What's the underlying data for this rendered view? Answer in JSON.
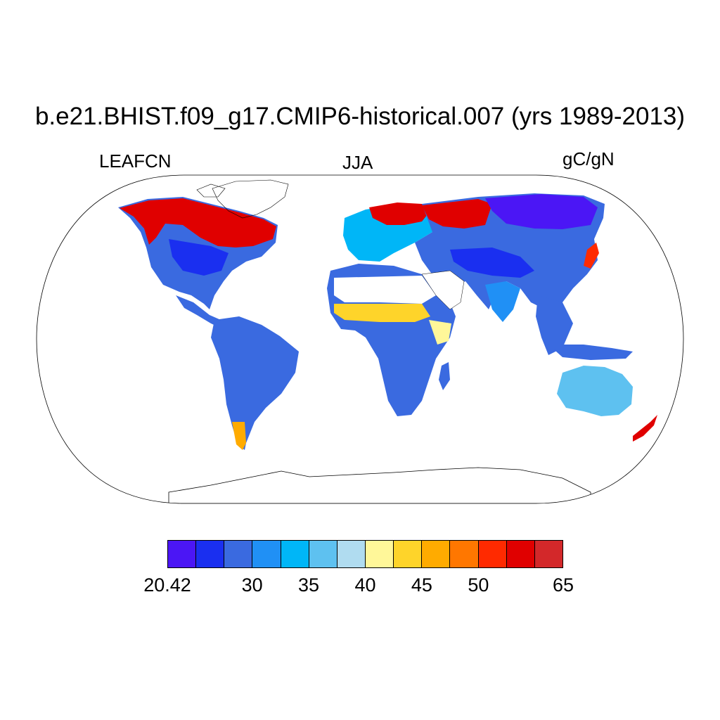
{
  "title": "b.e21.BHIST.f09_g17.CMIP6-historical.007 (yrs 1989-2013)",
  "subtitle_left": "LEAFCN",
  "subtitle_center": "JJA",
  "subtitle_right": "gC/gN",
  "colorbar": {
    "colors": [
      "#4b16f5",
      "#1a2ff0",
      "#3a6ae0",
      "#2090f5",
      "#00b6f7",
      "#5ec1f0",
      "#b0dcf0",
      "#fff799",
      "#fed42a",
      "#ffab00",
      "#ff7700",
      "#ff2a00",
      "#e00000",
      "#d3282a"
    ],
    "labels": [
      {
        "text": "20.42",
        "boundary": 0
      },
      {
        "text": "30",
        "boundary": 3
      },
      {
        "text": "35",
        "boundary": 5
      },
      {
        "text": "40",
        "boundary": 7
      },
      {
        "text": "45",
        "boundary": 9
      },
      {
        "text": "50",
        "boundary": 11
      },
      {
        "text": "65",
        "boundary": 14
      }
    ]
  }
}
